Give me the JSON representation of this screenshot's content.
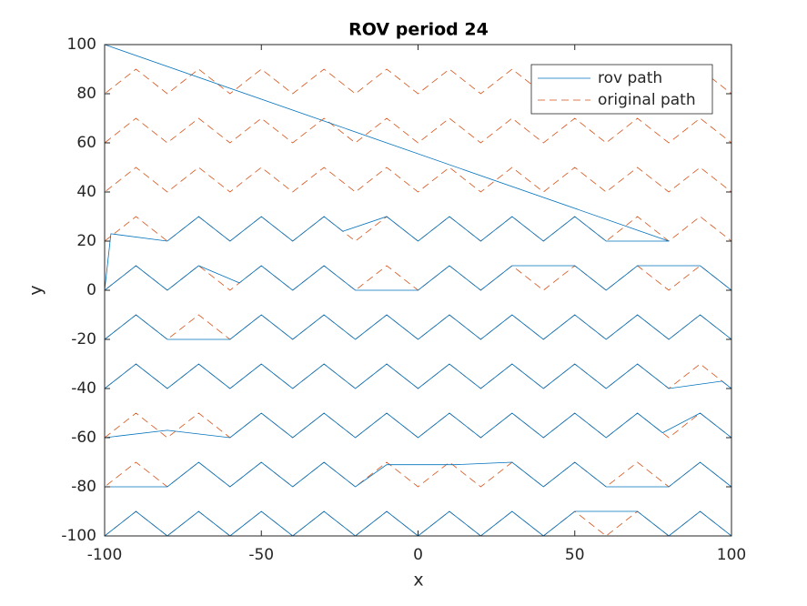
{
  "chart_data": {
    "type": "line",
    "title": "ROV period 24",
    "x_label": "x",
    "y_label": "y",
    "xlim": [
      -100,
      100
    ],
    "ylim": [
      -100,
      100
    ],
    "xticks": [
      -100,
      -50,
      0,
      50,
      100
    ],
    "yticks": [
      -100,
      -80,
      -60,
      -40,
      -20,
      0,
      20,
      40,
      60,
      80,
      100
    ],
    "legend": "upper right",
    "series": [
      {
        "name": "rov path",
        "color": "#0072BD",
        "dash": "solid",
        "x": [
          -100,
          -90,
          -80,
          -70,
          -60,
          -50,
          -40,
          -30,
          -20,
          -10,
          0,
          10,
          20,
          30,
          40,
          50,
          70,
          80,
          90,
          100,
          100,
          90,
          80,
          60,
          50,
          40,
          30,
          12,
          -10,
          -20,
          -30,
          -40,
          -50,
          -60,
          -70,
          -80,
          -100,
          -100,
          -80,
          -60,
          -50,
          -40,
          -30,
          -20,
          -10,
          0,
          10,
          20,
          30,
          40,
          50,
          60,
          70,
          78,
          90,
          100,
          100,
          97,
          80,
          70,
          60,
          50,
          40,
          30,
          20,
          10,
          0,
          -10,
          -20,
          -30,
          -38,
          -40,
          -50,
          -60,
          -70,
          -80,
          -90,
          -100,
          -100,
          -90,
          -80,
          -60,
          -50,
          -40,
          -30,
          -20,
          -10,
          0,
          10,
          20,
          30,
          40,
          50,
          60,
          70,
          80,
          90,
          100,
          100,
          90,
          70,
          60,
          50,
          30,
          20,
          10,
          0,
          -20,
          -30,
          -40,
          -50,
          -57,
          -70,
          -80,
          -90,
          -100,
          -98,
          -80,
          -70,
          -60,
          -50,
          -40,
          -30,
          -24,
          -10,
          0,
          10,
          20,
          30,
          40,
          50,
          60,
          80,
          -100
        ],
        "values": [
          -100,
          -90,
          -100,
          -90,
          -100,
          -90,
          -100,
          -90,
          -100,
          -90,
          -100,
          -90,
          -100,
          -90,
          -100,
          -90,
          -90,
          -100,
          -90,
          -100,
          -80,
          -70,
          -80,
          -80,
          -70,
          -80,
          -70,
          -71,
          -71,
          -80,
          -70,
          -80,
          -70,
          -80,
          -70,
          -80,
          -80,
          -60,
          -57,
          -60,
          -50,
          -60,
          -50,
          -60,
          -50,
          -60,
          -50,
          -60,
          -50,
          -60,
          -50,
          -60,
          -50,
          -58,
          -50,
          -60,
          -40,
          -37,
          -40,
          -30,
          -40,
          -30,
          -40,
          -30,
          -40,
          -30,
          -40,
          -30,
          -40,
          -30,
          -38,
          -40,
          -30,
          -40,
          -30,
          -40,
          -30,
          -40,
          -20,
          -10,
          -20,
          -20,
          -10,
          -20,
          -10,
          -20,
          -10,
          -20,
          -10,
          -20,
          -10,
          -20,
          -10,
          -20,
          -10,
          -20,
          -10,
          -20,
          0,
          10,
          10,
          0,
          10,
          10,
          0,
          10,
          0,
          0,
          10,
          0,
          10,
          3,
          10,
          0,
          10,
          0,
          23,
          20,
          30,
          20,
          30,
          20,
          30,
          24,
          30,
          20,
          30,
          20,
          30,
          20,
          30,
          20,
          20,
          100
        ]
      },
      {
        "name": "original path",
        "color": "#D95319",
        "dash": "dashed",
        "x": [
          -100,
          -90,
          -80,
          -70,
          -60,
          -50,
          -40,
          -30,
          -20,
          -10,
          0,
          10,
          20,
          30,
          40,
          50,
          60,
          70,
          80,
          90,
          100,
          100,
          90,
          80,
          70,
          60,
          50,
          40,
          30,
          20,
          10,
          0,
          -10,
          -20,
          -30,
          -40,
          -50,
          -60,
          -70,
          -80,
          -90,
          -100,
          -100,
          -90,
          -80,
          -70,
          -60,
          -50,
          -40,
          -30,
          -20,
          -10,
          0,
          10,
          20,
          30,
          40,
          50,
          60,
          70,
          80,
          90,
          100,
          100,
          90,
          80,
          70,
          60,
          50,
          40,
          30,
          20,
          10,
          0,
          -10,
          -20,
          -30,
          -40,
          -50,
          -60,
          -70,
          -80,
          -90,
          -100,
          -100,
          -90,
          -80,
          -70,
          -60,
          -50,
          -40,
          -30,
          -20,
          -10,
          0,
          10,
          20,
          30,
          40,
          50,
          60,
          70,
          80,
          90,
          100,
          100,
          90,
          80,
          70,
          60,
          50,
          40,
          30,
          20,
          10,
          0,
          -10,
          -20,
          -30,
          -40,
          -50,
          -60,
          -70,
          -80,
          -90,
          -100,
          -100,
          -90,
          -80,
          -70,
          -60,
          -50,
          -40,
          -30,
          -20,
          -10,
          0,
          10,
          20,
          30,
          40,
          50,
          60,
          70,
          80,
          90,
          100,
          100,
          90,
          80,
          70,
          60,
          50,
          40,
          30,
          20,
          10,
          0,
          -10,
          -20,
          -30,
          -40,
          -50,
          -60,
          -70,
          -80,
          -90,
          -100,
          -100,
          -90,
          -80,
          -70,
          -60,
          -50,
          -40,
          -30,
          -20,
          -10,
          0,
          10,
          20,
          30,
          40,
          50,
          60,
          70,
          80,
          90,
          100,
          100,
          90,
          80,
          70,
          60,
          50,
          40,
          30,
          20,
          10,
          0,
          -10,
          -20,
          -30,
          -40,
          -50,
          -60,
          -70,
          -80,
          -90,
          -100
        ],
        "values": [
          -100,
          -90,
          -100,
          -90,
          -100,
          -90,
          -100,
          -90,
          -100,
          -90,
          -100,
          -90,
          -100,
          -90,
          -100,
          -90,
          -100,
          -90,
          -100,
          -90,
          -100,
          -80,
          -70,
          -80,
          -70,
          -80,
          -70,
          -80,
          -70,
          -80,
          -70,
          -80,
          -70,
          -80,
          -70,
          -80,
          -70,
          -80,
          -70,
          -80,
          -70,
          -80,
          -60,
          -50,
          -60,
          -50,
          -60,
          -50,
          -60,
          -50,
          -60,
          -50,
          -60,
          -50,
          -60,
          -50,
          -60,
          -50,
          -60,
          -50,
          -60,
          -50,
          -60,
          -40,
          -30,
          -40,
          -30,
          -40,
          -30,
          -40,
          -30,
          -40,
          -30,
          -40,
          -30,
          -40,
          -30,
          -40,
          -30,
          -40,
          -30,
          -40,
          -30,
          -40,
          -20,
          -10,
          -20,
          -10,
          -20,
          -10,
          -20,
          -10,
          -20,
          -10,
          -20,
          -10,
          -20,
          -10,
          -20,
          -10,
          -20,
          -10,
          -20,
          -10,
          -20,
          0,
          10,
          0,
          10,
          0,
          10,
          0,
          10,
          0,
          10,
          0,
          10,
          0,
          10,
          0,
          10,
          0,
          10,
          0,
          10,
          0,
          20,
          30,
          20,
          30,
          20,
          30,
          20,
          30,
          20,
          30,
          20,
          30,
          20,
          30,
          20,
          30,
          20,
          30,
          20,
          30,
          20,
          40,
          50,
          40,
          50,
          40,
          50,
          40,
          50,
          40,
          50,
          40,
          50,
          40,
          50,
          40,
          50,
          40,
          50,
          40,
          50,
          40,
          60,
          70,
          60,
          70,
          60,
          70,
          60,
          70,
          60,
          70,
          60,
          70,
          60,
          70,
          60,
          70,
          60,
          70,
          60,
          70,
          60,
          80,
          90,
          80,
          90,
          80,
          90,
          80,
          90,
          80,
          90,
          80,
          90,
          80,
          90,
          80,
          90,
          80,
          90,
          80,
          90,
          80
        ]
      }
    ]
  }
}
